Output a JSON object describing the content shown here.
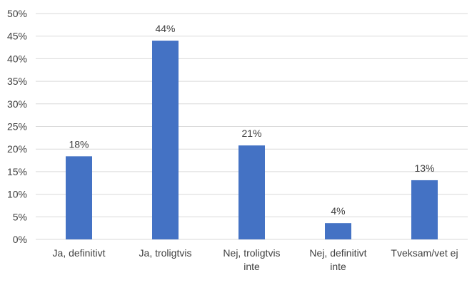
{
  "chart_data": {
    "type": "bar",
    "title": "",
    "xlabel": "",
    "ylabel": "",
    "categories": [
      [
        "Ja, definitivt"
      ],
      [
        "Ja, troligtvis"
      ],
      [
        "Nej, troligtvis",
        "inte"
      ],
      [
        "Nej, definitivt",
        "inte"
      ],
      [
        "Tveksam/vet ej"
      ]
    ],
    "values": [
      18.4,
      44.0,
      20.8,
      3.6,
      13.1
    ],
    "data_labels": [
      "18%",
      "44%",
      "21%",
      "4%",
      "13%"
    ],
    "ylim": [
      0,
      50
    ],
    "yticks": [
      0,
      5,
      10,
      15,
      20,
      25,
      30,
      35,
      40,
      45,
      50
    ],
    "ytick_labels": [
      "0%",
      "5%",
      "10%",
      "15%",
      "20%",
      "25%",
      "30%",
      "35%",
      "40%",
      "45%",
      "50%"
    ],
    "grid": true,
    "legend": "none",
    "bar_color": "#4472C4",
    "grid_color": "#D9D9D9"
  }
}
